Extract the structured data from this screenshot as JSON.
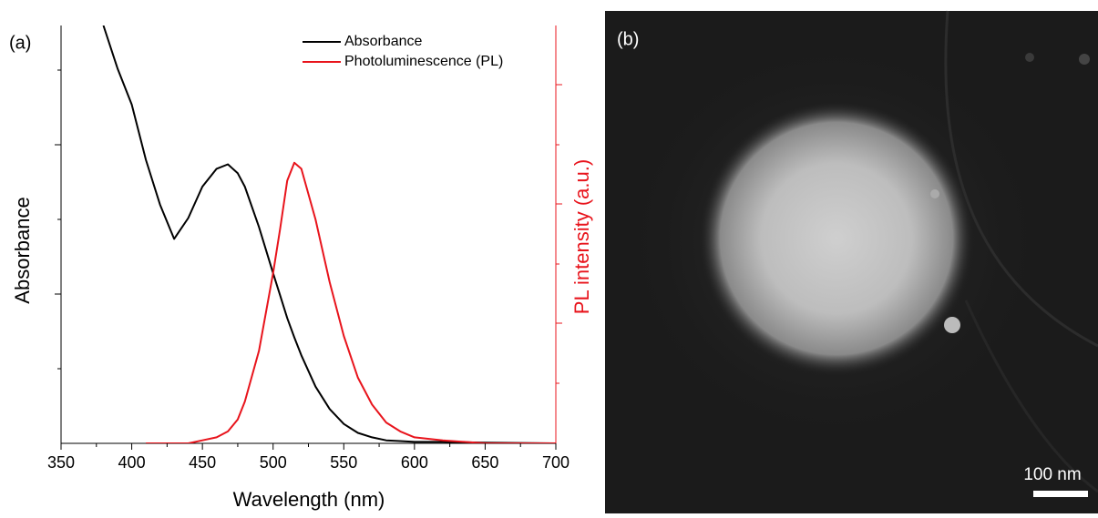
{
  "chart_data": {
    "type": "line",
    "panel_label": "(a)",
    "x_label": "Wavelength (nm)",
    "y_label": "Absorbance",
    "y2_label": "PL intensity (a.u.)",
    "x": [
      380,
      390,
      400,
      410,
      420,
      430,
      440,
      450,
      460,
      468,
      475,
      480,
      490,
      500,
      505,
      510,
      515,
      520,
      530,
      540,
      550,
      560,
      570,
      580,
      590,
      600,
      620,
      650,
      700
    ],
    "series": [
      {
        "name": "Absorbance",
        "color": "#000000",
        "values": [
          2.8,
          2.51,
          2.27,
          1.9,
          1.6,
          1.37,
          1.51,
          1.72,
          1.84,
          1.87,
          1.81,
          1.72,
          1.45,
          1.14,
          0.99,
          0.84,
          0.71,
          0.59,
          0.38,
          0.23,
          0.13,
          0.07,
          0.04,
          0.02,
          0.015,
          0.01,
          0.01,
          0.005,
          0
        ]
      },
      {
        "name": "Photoluminescence (PL)",
        "color": "#e8141c",
        "axis": "y2",
        "values": [
          null,
          null,
          null,
          0,
          0,
          0,
          0,
          0.01,
          0.02,
          0.04,
          0.08,
          0.14,
          0.31,
          0.57,
          0.72,
          0.88,
          0.94,
          0.92,
          0.75,
          0.54,
          0.36,
          0.22,
          0.13,
          0.07,
          0.04,
          0.02,
          0.01,
          0,
          0
        ]
      }
    ],
    "xlim": [
      350,
      700
    ],
    "xticks": [
      350,
      400,
      450,
      500,
      550,
      600,
      650,
      700
    ],
    "ylim": [
      0,
      2.8
    ],
    "y2lim": [
      0,
      1.4
    ],
    "legend": "top-right"
  },
  "image": {
    "panel_label": "(b)",
    "scale_bar": "100 nm"
  }
}
